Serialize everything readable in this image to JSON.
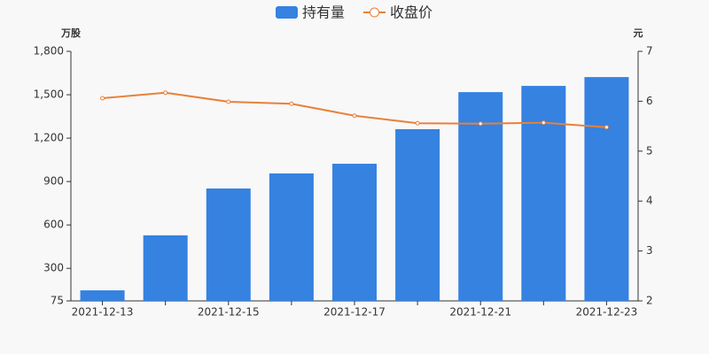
{
  "chart_data": {
    "type": "bar-line",
    "y_label": "万股",
    "y2_label": "元",
    "categories": [
      "2021-12-13",
      null,
      "2021-12-15",
      null,
      "2021-12-17",
      null,
      "2021-12-21",
      null,
      "2021-12-23"
    ],
    "series": [
      {
        "name": "持有量",
        "type": "bar",
        "color": "#3582e0",
        "values": [
          148,
          528,
          852,
          956,
          1023,
          1262,
          1518,
          1561,
          1622
        ]
      },
      {
        "name": "收盘价",
        "type": "line",
        "axis": "y2",
        "color": "#e8813a",
        "values": [
          6.06,
          6.17,
          5.99,
          5.95,
          5.71,
          5.56,
          5.55,
          5.57,
          5.48
        ]
      }
    ],
    "ylim": [
      75,
      1800
    ],
    "yticks": [
      75,
      300,
      600,
      900,
      {
        "value": 1200,
        "label": "1,200"
      },
      {
        "value": 1500,
        "label": "1,500"
      },
      {
        "value": 1800,
        "label": "1,800"
      }
    ],
    "y2lim": [
      2,
      7
    ],
    "y2ticks": [
      2,
      3,
      4,
      5,
      6,
      7
    ]
  }
}
